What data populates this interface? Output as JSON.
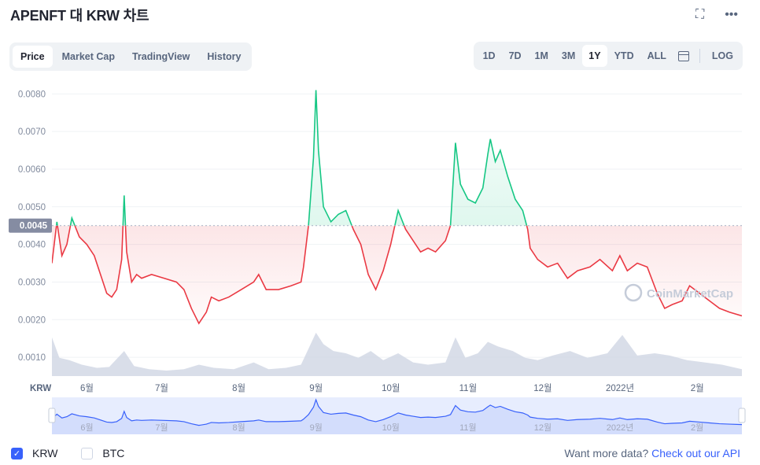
{
  "header": {
    "title": "APENFT 대 KRW 차트",
    "icons": [
      "expand-icon",
      "more-icon"
    ],
    "expand_glyph": "⛶",
    "more_glyph": "•••"
  },
  "tabs": [
    "Price",
    "Market Cap",
    "TradingView",
    "History"
  ],
  "active_tab": "Price",
  "ranges": [
    "1D",
    "7D",
    "1M",
    "3M",
    "1Y",
    "YTD",
    "ALL"
  ],
  "active_range": "1Y",
  "log_label": "LOG",
  "calendar_icon": "calendar-icon",
  "colors": {
    "up": "#16c784",
    "down": "#ea3943",
    "volume": "#cfd6e4",
    "nav_line": "#3861fb",
    "nav_fill": "#dde6fd",
    "price_tag": "#858ca2"
  },
  "chart_data": {
    "type": "line",
    "currency_label": "KRW",
    "reference_price": 0.0045,
    "reference_price_label": "0.0045",
    "ylim": [
      0.0005,
      0.0083
    ],
    "y_ticks": [
      "0.0010",
      "0.0020",
      "0.0030",
      "0.0040",
      "0.0050",
      "0.0060",
      "0.0070",
      "0.0080"
    ],
    "y_tick_values": [
      0.001,
      0.002,
      0.003,
      0.004,
      0.005,
      0.006,
      0.007,
      0.008
    ],
    "x_ticks": [
      "6월",
      "7월",
      "8월",
      "9월",
      "10월",
      "11월",
      "12월",
      "2022년",
      "2월"
    ],
    "x_tick_dates": [
      "2021-06-01",
      "2021-07-01",
      "2021-08-01",
      "2021-09-01",
      "2021-10-01",
      "2021-11-01",
      "2021-12-01",
      "2022-01-01",
      "2022-02-01"
    ],
    "x_range": [
      "2021-05-23",
      "2022-02-24"
    ],
    "watermark": "CoinMarketCap",
    "series": [
      {
        "points": [
          [
            "2021-05-23",
            0.0035
          ],
          [
            "2021-05-25",
            0.0046
          ],
          [
            "2021-05-27",
            0.0037
          ],
          [
            "2021-05-29",
            0.004
          ],
          [
            "2021-05-31",
            0.0047
          ],
          [
            "2021-06-03",
            0.0042
          ],
          [
            "2021-06-06",
            0.004
          ],
          [
            "2021-06-09",
            0.0037
          ],
          [
            "2021-06-12",
            0.0031
          ],
          [
            "2021-06-14",
            0.0027
          ],
          [
            "2021-06-16",
            0.0026
          ],
          [
            "2021-06-18",
            0.0028
          ],
          [
            "2021-06-20",
            0.0036
          ],
          [
            "2021-06-21",
            0.0053
          ],
          [
            "2021-06-22",
            0.0038
          ],
          [
            "2021-06-24",
            0.003
          ],
          [
            "2021-06-26",
            0.0032
          ],
          [
            "2021-06-28",
            0.0031
          ],
          [
            "2021-07-02",
            0.0032
          ],
          [
            "2021-07-07",
            0.0031
          ],
          [
            "2021-07-12",
            0.003
          ],
          [
            "2021-07-15",
            0.0028
          ],
          [
            "2021-07-18",
            0.0023
          ],
          [
            "2021-07-21",
            0.0019
          ],
          [
            "2021-07-24",
            0.0022
          ],
          [
            "2021-07-26",
            0.0026
          ],
          [
            "2021-07-29",
            0.0025
          ],
          [
            "2021-08-02",
            0.0026
          ],
          [
            "2021-08-07",
            0.0028
          ],
          [
            "2021-08-12",
            0.003
          ],
          [
            "2021-08-14",
            0.0032
          ],
          [
            "2021-08-17",
            0.0028
          ],
          [
            "2021-08-22",
            0.0028
          ],
          [
            "2021-08-27",
            0.0029
          ],
          [
            "2021-08-31",
            0.003
          ],
          [
            "2021-09-01",
            0.0034
          ],
          [
            "2021-09-03",
            0.0045
          ],
          [
            "2021-09-05",
            0.0063
          ],
          [
            "2021-09-06",
            0.0081
          ],
          [
            "2021-09-07",
            0.0065
          ],
          [
            "2021-09-09",
            0.005
          ],
          [
            "2021-09-12",
            0.0046
          ],
          [
            "2021-09-15",
            0.0048
          ],
          [
            "2021-09-18",
            0.0049
          ],
          [
            "2021-09-21",
            0.0044
          ],
          [
            "2021-09-24",
            0.004
          ],
          [
            "2021-09-27",
            0.0032
          ],
          [
            "2021-09-30",
            0.0028
          ],
          [
            "2021-10-03",
            0.0033
          ],
          [
            "2021-10-06",
            0.004
          ],
          [
            "2021-10-09",
            0.0049
          ],
          [
            "2021-10-12",
            0.0044
          ],
          [
            "2021-10-15",
            0.0041
          ],
          [
            "2021-10-18",
            0.0038
          ],
          [
            "2021-10-21",
            0.0039
          ],
          [
            "2021-10-24",
            0.0038
          ],
          [
            "2021-10-28",
            0.0041
          ],
          [
            "2021-10-30",
            0.0045
          ],
          [
            "2021-11-01",
            0.0067
          ],
          [
            "2021-11-03",
            0.0056
          ],
          [
            "2021-11-06",
            0.0052
          ],
          [
            "2021-11-09",
            0.0051
          ],
          [
            "2021-11-12",
            0.0055
          ],
          [
            "2021-11-14",
            0.0064
          ],
          [
            "2021-11-15",
            0.0068
          ],
          [
            "2021-11-17",
            0.0062
          ],
          [
            "2021-11-19",
            0.0065
          ],
          [
            "2021-11-22",
            0.0058
          ],
          [
            "2021-11-25",
            0.0052
          ],
          [
            "2021-11-28",
            0.0049
          ],
          [
            "2021-11-30",
            0.0044
          ],
          [
            "2021-12-01",
            0.0039
          ],
          [
            "2021-12-04",
            0.0036
          ],
          [
            "2021-12-08",
            0.0034
          ],
          [
            "2021-12-12",
            0.0035
          ],
          [
            "2021-12-16",
            0.0031
          ],
          [
            "2021-12-20",
            0.0033
          ],
          [
            "2021-12-25",
            0.0034
          ],
          [
            "2021-12-29",
            0.0036
          ],
          [
            "2022-01-03",
            0.0033
          ],
          [
            "2022-01-06",
            0.0037
          ],
          [
            "2022-01-09",
            0.0033
          ],
          [
            "2022-01-13",
            0.0035
          ],
          [
            "2022-01-17",
            0.0034
          ],
          [
            "2022-01-21",
            0.0027
          ],
          [
            "2022-01-24",
            0.0023
          ],
          [
            "2022-01-27",
            0.0024
          ],
          [
            "2022-01-31",
            0.0025
          ],
          [
            "2022-02-03",
            0.0029
          ],
          [
            "2022-02-07",
            0.0027
          ],
          [
            "2022-02-11",
            0.0025
          ],
          [
            "2022-02-15",
            0.0023
          ],
          [
            "2022-02-19",
            0.0022
          ],
          [
            "2022-02-24",
            0.0021
          ]
        ]
      }
    ],
    "volume": {
      "ylim": [
        0,
        1
      ],
      "points": [
        [
          "2021-05-23",
          0.85
        ],
        [
          "2021-05-26",
          0.4
        ],
        [
          "2021-05-30",
          0.35
        ],
        [
          "2021-06-04",
          0.25
        ],
        [
          "2021-06-10",
          0.18
        ],
        [
          "2021-06-15",
          0.2
        ],
        [
          "2021-06-21",
          0.55
        ],
        [
          "2021-06-25",
          0.22
        ],
        [
          "2021-07-01",
          0.15
        ],
        [
          "2021-07-08",
          0.12
        ],
        [
          "2021-07-15",
          0.15
        ],
        [
          "2021-07-21",
          0.25
        ],
        [
          "2021-07-27",
          0.18
        ],
        [
          "2021-08-04",
          0.15
        ],
        [
          "2021-08-12",
          0.3
        ],
        [
          "2021-08-18",
          0.15
        ],
        [
          "2021-08-25",
          0.18
        ],
        [
          "2021-08-31",
          0.25
        ],
        [
          "2021-09-03",
          0.6
        ],
        [
          "2021-09-06",
          0.95
        ],
        [
          "2021-09-09",
          0.7
        ],
        [
          "2021-09-13",
          0.55
        ],
        [
          "2021-09-18",
          0.5
        ],
        [
          "2021-09-23",
          0.4
        ],
        [
          "2021-09-28",
          0.55
        ],
        [
          "2021-10-03",
          0.35
        ],
        [
          "2021-10-09",
          0.5
        ],
        [
          "2021-10-15",
          0.3
        ],
        [
          "2021-10-21",
          0.25
        ],
        [
          "2021-10-28",
          0.3
        ],
        [
          "2021-11-01",
          0.85
        ],
        [
          "2021-11-05",
          0.4
        ],
        [
          "2021-11-10",
          0.5
        ],
        [
          "2021-11-14",
          0.75
        ],
        [
          "2021-11-18",
          0.65
        ],
        [
          "2021-11-24",
          0.55
        ],
        [
          "2021-11-29",
          0.4
        ],
        [
          "2021-12-04",
          0.35
        ],
        [
          "2021-12-10",
          0.45
        ],
        [
          "2021-12-17",
          0.55
        ],
        [
          "2021-12-24",
          0.4
        ],
        [
          "2022-01-01",
          0.5
        ],
        [
          "2022-01-07",
          0.9
        ],
        [
          "2022-01-13",
          0.45
        ],
        [
          "2022-01-20",
          0.5
        ],
        [
          "2022-01-26",
          0.45
        ],
        [
          "2022-02-02",
          0.35
        ],
        [
          "2022-02-09",
          0.3
        ],
        [
          "2022-02-16",
          0.25
        ],
        [
          "2022-02-24",
          0.15
        ]
      ]
    }
  },
  "legend": [
    {
      "label": "KRW",
      "checked": true
    },
    {
      "label": "BTC",
      "checked": false
    }
  ],
  "check_glyph": "✓",
  "footer": {
    "prefix": "Want more data?",
    "link": "Check out our API"
  }
}
